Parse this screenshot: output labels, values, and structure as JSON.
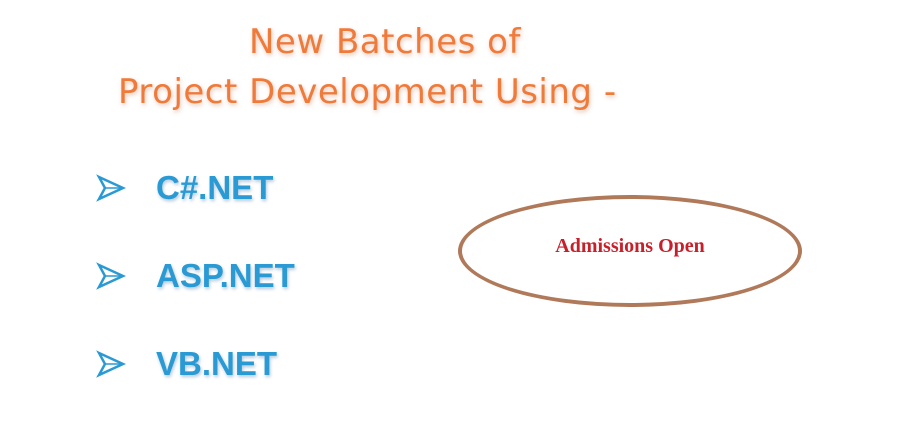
{
  "heading": {
    "line1": "New Batches of",
    "line2": "Project Development Using -"
  },
  "technologies": [
    {
      "label": "C#.NET",
      "icon": "arrow-icon"
    },
    {
      "label": "ASP.NET",
      "icon": "arrow-icon"
    },
    {
      "label": "VB.NET",
      "icon": "arrow-icon"
    }
  ],
  "admissions": {
    "text": "Admissions Open"
  },
  "colors": {
    "heading": "#f07a3a",
    "technology": "#2a9ad4",
    "arrow": "#2a9ad4",
    "oval_border": "#b07a5a",
    "admissions_text": "#c8202a"
  }
}
